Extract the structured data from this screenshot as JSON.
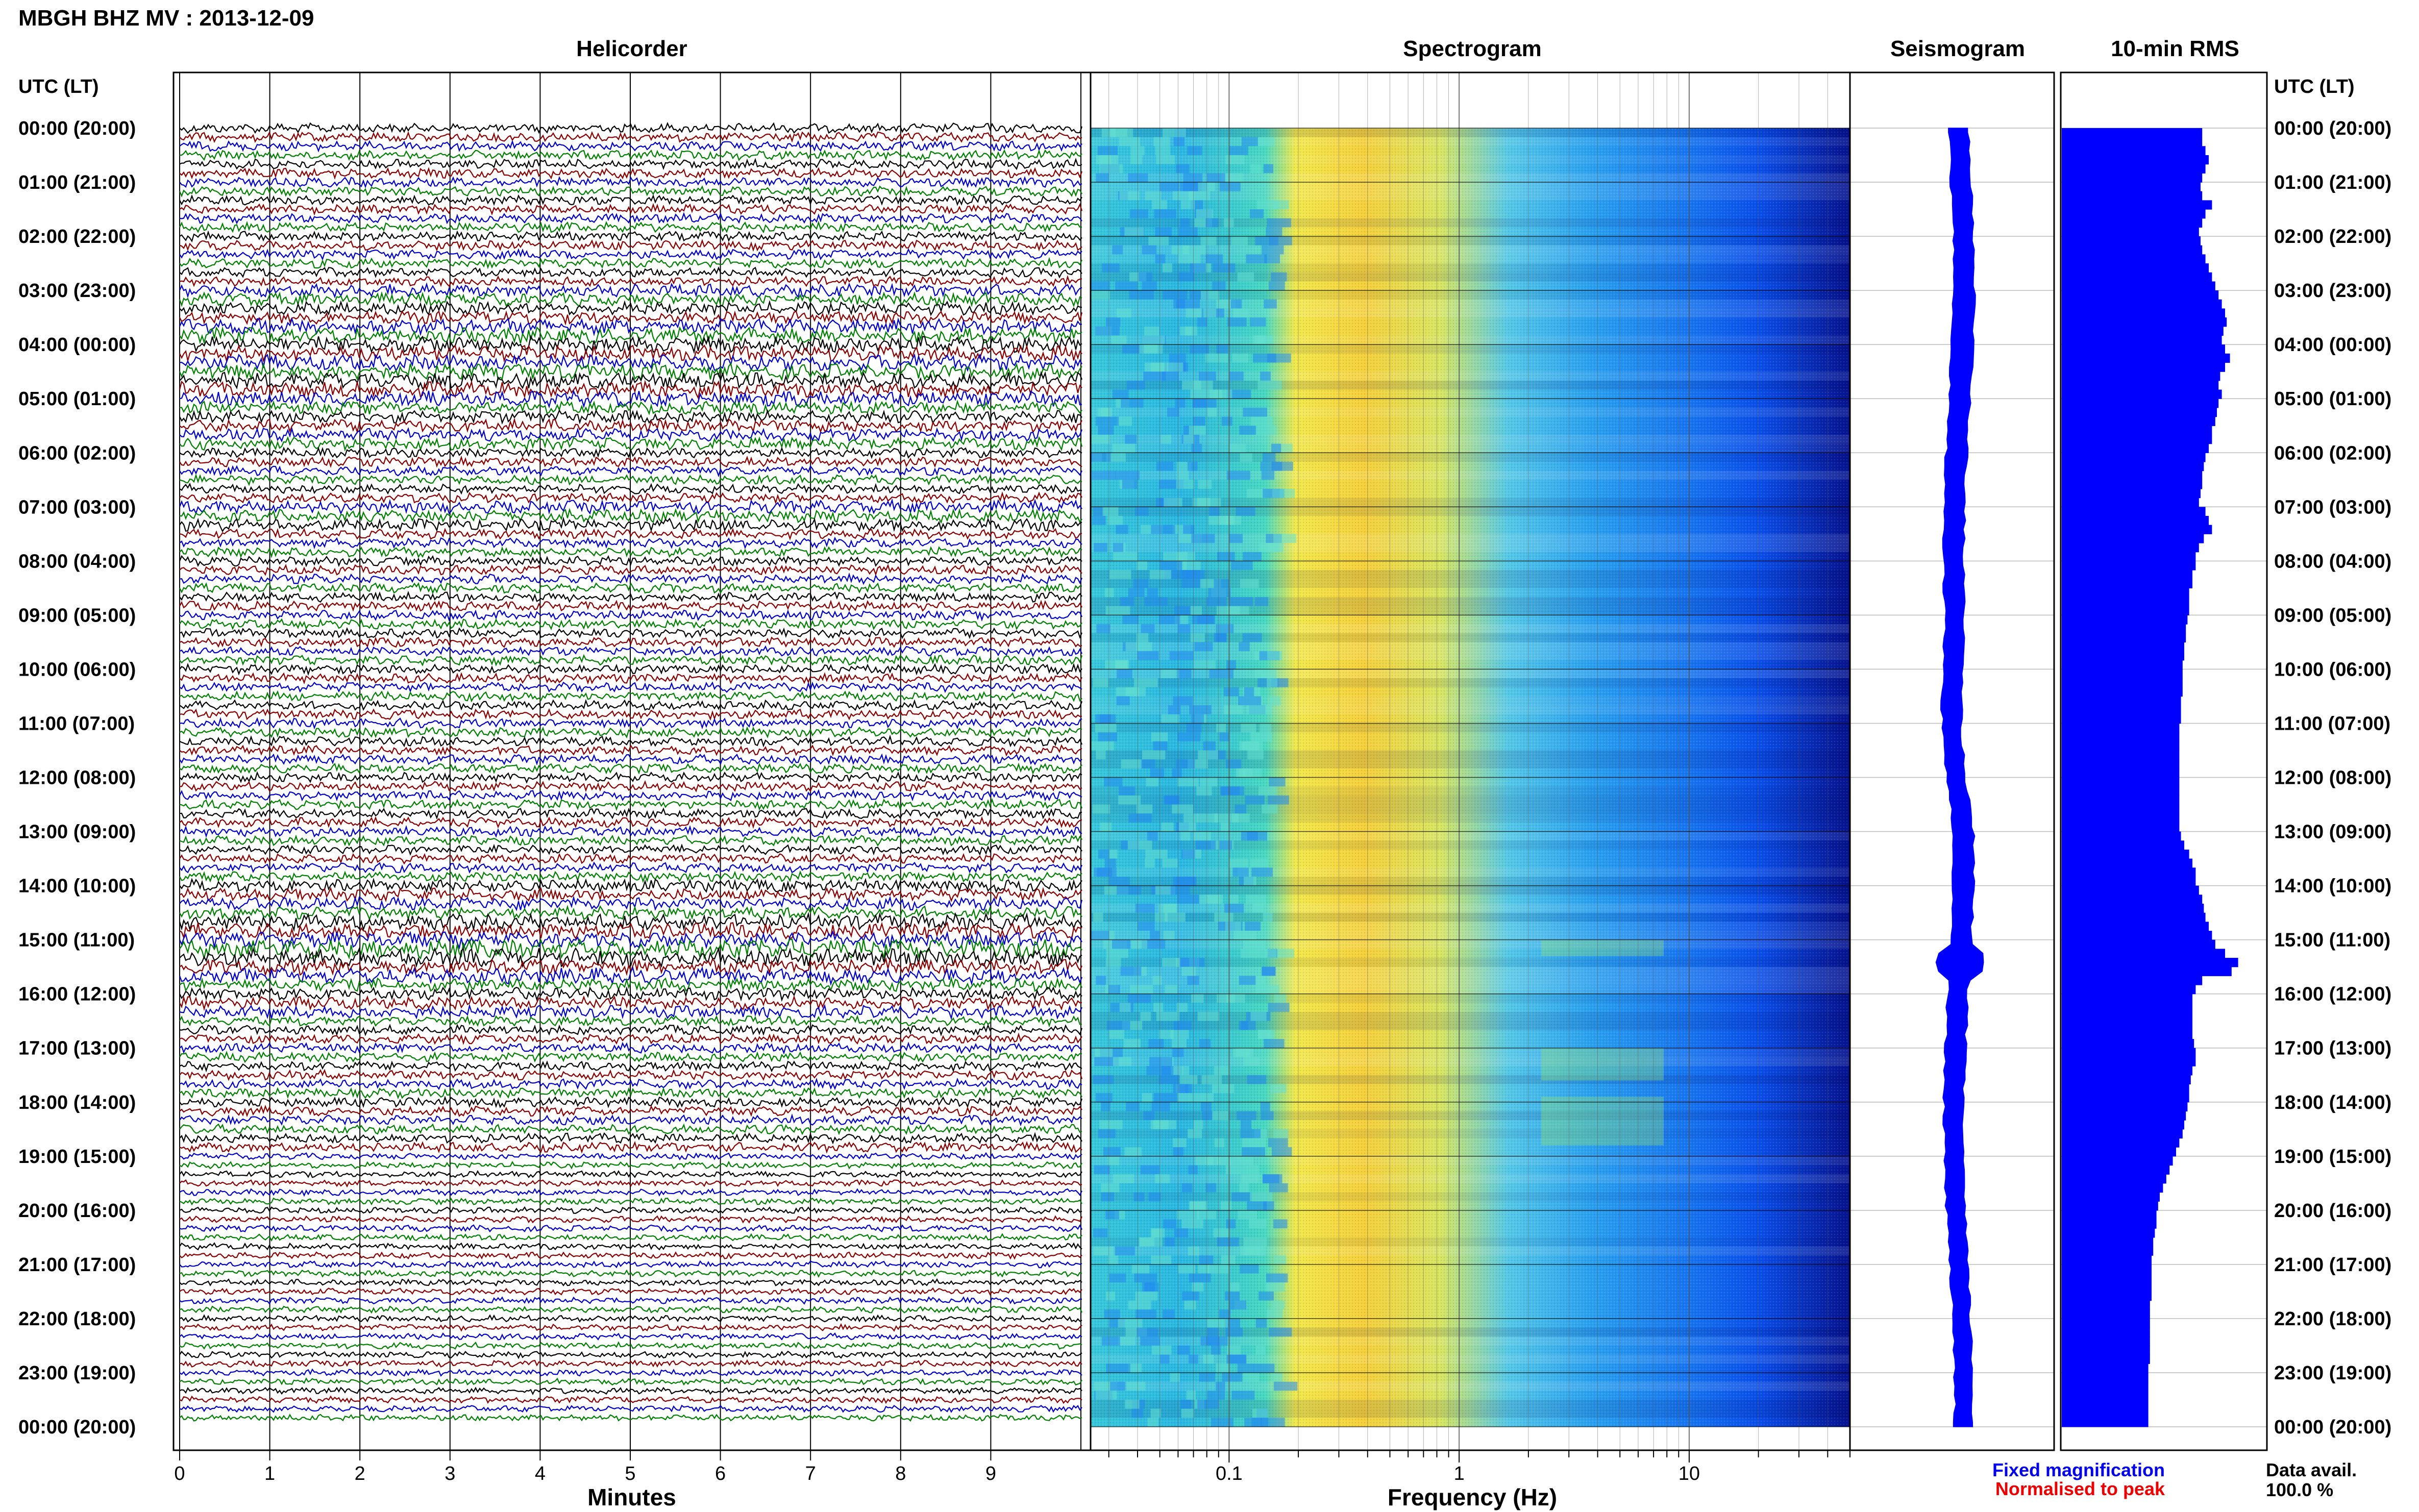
{
  "header": {
    "title": "MBGH BHZ MV : 2013-12-09"
  },
  "panels": {
    "helicorder": "Helicorder",
    "spectrogram": "Spectrogram",
    "seismogram": "Seismogram",
    "rms": "10-min RMS"
  },
  "axis": {
    "time_left_header": "UTC (LT)",
    "time_right_header": "UTC (LT)",
    "time_labels": [
      "00:00 (20:00)",
      "01:00 (21:00)",
      "02:00 (22:00)",
      "03:00 (23:00)",
      "04:00 (00:00)",
      "05:00 (01:00)",
      "06:00 (02:00)",
      "07:00 (03:00)",
      "08:00 (04:00)",
      "09:00 (05:00)",
      "10:00 (06:00)",
      "11:00 (07:00)",
      "12:00 (08:00)",
      "13:00 (09:00)",
      "14:00 (10:00)",
      "15:00 (11:00)",
      "16:00 (12:00)",
      "17:00 (13:00)",
      "18:00 (14:00)",
      "19:00 (15:00)",
      "20:00 (16:00)",
      "21:00 (17:00)",
      "22:00 (18:00)",
      "23:00 (19:00)",
      "00:00 (20:00)"
    ],
    "minutes_ticks": [
      "0",
      "1",
      "2",
      "3",
      "4",
      "5",
      "6",
      "7",
      "8",
      "9"
    ],
    "minutes_label": "Minutes",
    "freq_ticks": [
      "0.1",
      "1",
      "10"
    ],
    "freq_label": "Frequency (Hz)"
  },
  "legend": {
    "fixed": "Fixed magnification",
    "normalised": "Normalised to peak",
    "fixed_color": "#0000ee",
    "normalised_color": "#ee0000"
  },
  "data_avail": {
    "label": "Data avail.",
    "value": "100.0 %"
  },
  "colors": {
    "trace_cycle": [
      "#000000",
      "#8b0000",
      "#0000cc",
      "#008000"
    ],
    "rms_fill": "#0000ff",
    "seis_fill": "#0000ff"
  },
  "chart_data": [
    {
      "type": "line",
      "title": "Helicorder",
      "xlabel": "Minutes",
      "xlim": [
        0,
        10
      ],
      "rows": 144,
      "row_minutes": 10,
      "row_activity": [
        3,
        3,
        3,
        3,
        3,
        3,
        3,
        3,
        3,
        3,
        3,
        3,
        3,
        3,
        3,
        3,
        3,
        3,
        4,
        4,
        4,
        4,
        5,
        5,
        5,
        5,
        5,
        5,
        5,
        5,
        5,
        4,
        4,
        4,
        4,
        4,
        3,
        3,
        3,
        3,
        3,
        3,
        4,
        4,
        4,
        3,
        3,
        3,
        3,
        3,
        3,
        3,
        3,
        3,
        3,
        3,
        3,
        3,
        3,
        3,
        3,
        3,
        3,
        3,
        3,
        3,
        3,
        3,
        3,
        3,
        3,
        3,
        3,
        3,
        3,
        3,
        3,
        3,
        3,
        3,
        3,
        3,
        3,
        3,
        4,
        4,
        4,
        4,
        5,
        5,
        5,
        6,
        6,
        5,
        5,
        4,
        4,
        4,
        4,
        3,
        3,
        3,
        3,
        3,
        3,
        3,
        3,
        3,
        3,
        3,
        3,
        3,
        3,
        3,
        2,
        2,
        2,
        2,
        2,
        2,
        2,
        2,
        2,
        2,
        2,
        2,
        2,
        2,
        2,
        2,
        2,
        2,
        2,
        2,
        2,
        2,
        2,
        2,
        2,
        2,
        2,
        2,
        2,
        2
      ]
    },
    {
      "type": "heatmap",
      "title": "Spectrogram",
      "xlabel": "Frequency (Hz)",
      "x_scale": "log",
      "xlim": [
        0.025,
        50
      ]
    },
    {
      "type": "area",
      "title": "Seismogram",
      "rows": 144
    },
    {
      "type": "bar",
      "title": "10-min RMS",
      "orientation": "horizontal",
      "rows": 144,
      "values": [
        0.86,
        0.86,
        0.88,
        0.9,
        0.88,
        0.86,
        0.85,
        0.86,
        0.92,
        0.88,
        0.86,
        0.84,
        0.85,
        0.86,
        0.88,
        0.9,
        0.92,
        0.94,
        0.96,
        0.98,
        1.0,
        1.01,
        0.99,
        0.98,
        1.0,
        1.03,
        1.0,
        0.97,
        0.96,
        0.98,
        0.96,
        0.95,
        0.94,
        0.92,
        0.92,
        0.9,
        0.88,
        0.87,
        0.86,
        0.86,
        0.85,
        0.84,
        0.88,
        0.9,
        0.92,
        0.87,
        0.84,
        0.82,
        0.82,
        0.8,
        0.8,
        0.78,
        0.78,
        0.78,
        0.77,
        0.76,
        0.76,
        0.75,
        0.75,
        0.74,
        0.74,
        0.74,
        0.74,
        0.73,
        0.73,
        0.73,
        0.72,
        0.72,
        0.72,
        0.72,
        0.72,
        0.72,
        0.72,
        0.72,
        0.72,
        0.72,
        0.72,
        0.72,
        0.73,
        0.75,
        0.78,
        0.8,
        0.82,
        0.82,
        0.84,
        0.86,
        0.87,
        0.88,
        0.9,
        0.92,
        0.94,
        1.0,
        1.08,
        1.04,
        0.86,
        0.82,
        0.8,
        0.8,
        0.8,
        0.8,
        0.8,
        0.81,
        0.82,
        0.82,
        0.8,
        0.79,
        0.78,
        0.78,
        0.77,
        0.76,
        0.75,
        0.74,
        0.72,
        0.7,
        0.68,
        0.66,
        0.64,
        0.62,
        0.6,
        0.59,
        0.58,
        0.58,
        0.57,
        0.56,
        0.56,
        0.55,
        0.55,
        0.55,
        0.55,
        0.55,
        0.54,
        0.54,
        0.54,
        0.54,
        0.54,
        0.54,
        0.54,
        0.53,
        0.53,
        0.53,
        0.53,
        0.53,
        0.53,
        0.53
      ]
    }
  ]
}
